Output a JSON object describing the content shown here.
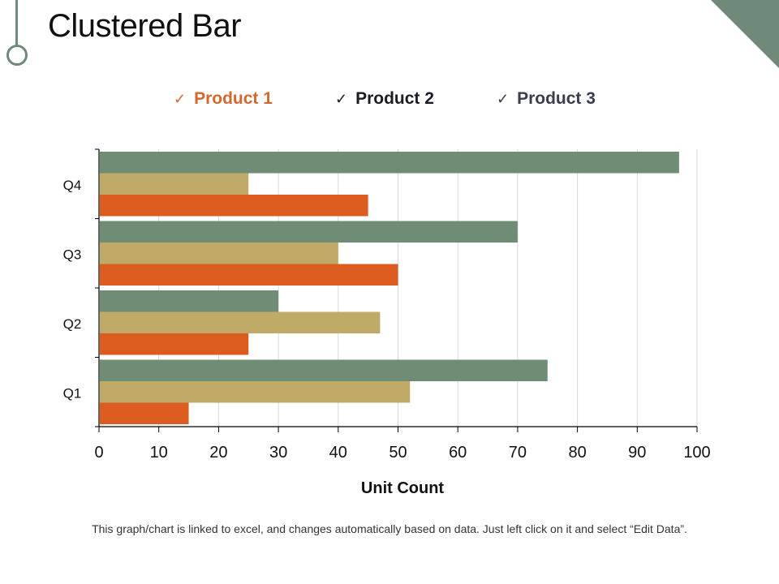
{
  "slide": {
    "title": "Clustered Bar",
    "footnote": "This graph/chart is linked to excel, and changes automatically  based on data. Just left click on it and select “Edit Data”."
  },
  "legend": [
    {
      "label": "Product 1",
      "check": "✓",
      "text_color": "#d2692e"
    },
    {
      "label": "Product 2",
      "check": "✓",
      "text_color": "#1c1c24"
    },
    {
      "label": "Product 3",
      "check": "✓",
      "text_color": "#3a3e4c"
    }
  ],
  "theme": {
    "accent": "#6f8a7a"
  },
  "chart_data": {
    "type": "bar",
    "orientation": "horizontal",
    "title": "Clustered Bar",
    "xlabel": "Unit Count",
    "ylabel": "",
    "categories": [
      "Q1",
      "Q2",
      "Q3",
      "Q4"
    ],
    "series": [
      {
        "name": "Product 1",
        "color": "#dc5b1e",
        "values": [
          15,
          25,
          50,
          45
        ]
      },
      {
        "name": "Product 2",
        "color": "#bfab67",
        "values": [
          52,
          47,
          40,
          25
        ]
      },
      {
        "name": "Product 3",
        "color": "#6f8c75",
        "values": [
          75,
          30,
          70,
          97
        ]
      }
    ],
    "xlim": [
      0,
      100
    ],
    "xticks": [
      0,
      10,
      20,
      30,
      40,
      50,
      60,
      70,
      80,
      90,
      100
    ],
    "grid": true,
    "legend_position": "top"
  }
}
